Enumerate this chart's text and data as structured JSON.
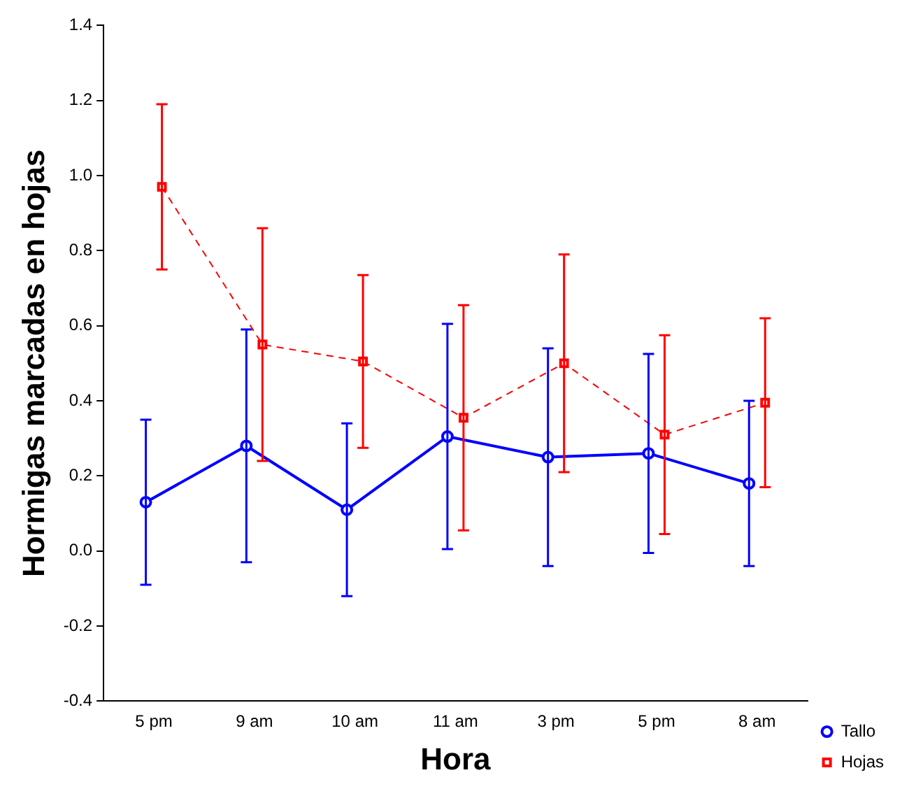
{
  "chart_data": {
    "type": "line",
    "xlabel": "Hora",
    "ylabel": "Hormigas marcadas en hojas",
    "categories": [
      "5 pm",
      "9 am",
      "10 am",
      "11 am",
      "3 pm",
      "5 pm",
      "8 am"
    ],
    "series": [
      {
        "name": "Tallo",
        "color": "#0000ff",
        "marker": "circle",
        "line_style": "solid",
        "values": [
          0.13,
          0.28,
          0.11,
          0.305,
          0.25,
          0.26,
          0.18
        ],
        "errors": [
          0.22,
          0.31,
          0.23,
          0.3,
          0.29,
          0.265,
          0.22
        ]
      },
      {
        "name": "Hojas",
        "color": "#ff0000",
        "marker": "square",
        "line_style": "dashed",
        "values": [
          0.97,
          0.55,
          0.505,
          0.355,
          0.5,
          0.31,
          0.395
        ],
        "errors": [
          0.22,
          0.31,
          0.23,
          0.3,
          0.29,
          0.265,
          0.225
        ]
      }
    ],
    "ylim": [
      -0.4,
      1.4
    ],
    "yticks": [
      -0.4,
      -0.2,
      {
        "value": 0,
        "label": "0.0"
      },
      0.2,
      0.4,
      0.6,
      0.8,
      {
        "value": 1,
        "label": "1.0"
      },
      1.2,
      1.4
    ],
    "grid": false,
    "legend": "bottom right"
  }
}
